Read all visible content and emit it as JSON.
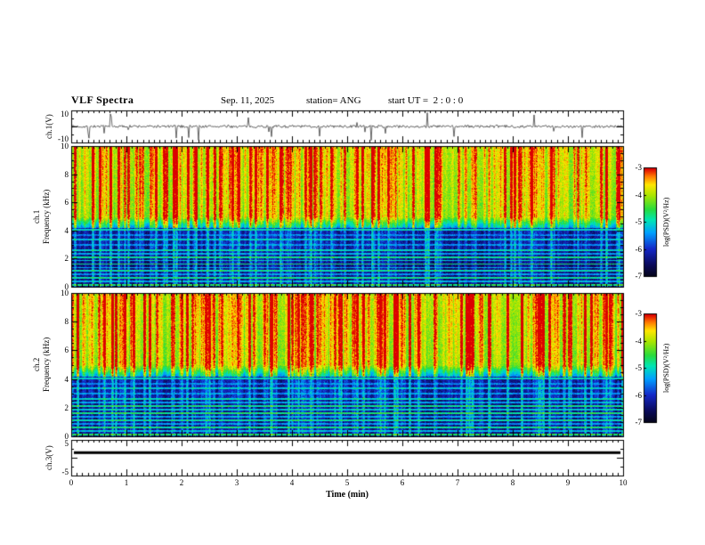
{
  "chart_data": {
    "type": "heatmap",
    "title": "VLF Spectra",
    "header": {
      "date": "Sep. 11, 2025",
      "station": "station= ANG",
      "start_ut": "start UT =  2 : 0 : 0"
    },
    "x_axis": {
      "label": "Time (min)",
      "range": [
        0,
        10
      ],
      "major_ticks": [
        "0",
        "1",
        "2",
        "3",
        "4",
        "5",
        "6",
        "7",
        "8",
        "9",
        "10"
      ]
    },
    "panels": [
      {
        "name": "ch1-voltage",
        "type": "waveform",
        "ylabel": "ch.1(V)",
        "range": [
          -10,
          10
        ],
        "tick_labels": [
          "10",
          "-10"
        ]
      },
      {
        "name": "ch1-spectrogram",
        "type": "spectrogram",
        "ylabel_lines": [
          "ch.1",
          "Frequency (kHz)"
        ],
        "range": [
          0,
          10
        ],
        "tick_labels": [
          "10",
          "8",
          "6",
          "4",
          "2",
          "0"
        ]
      },
      {
        "name": "ch2-spectrogram",
        "type": "spectrogram",
        "ylabel_lines": [
          "ch.2",
          "Frequency (kHz)"
        ],
        "range": [
          0,
          10
        ],
        "tick_labels": [
          "10",
          "8",
          "6",
          "4",
          "2",
          "0"
        ]
      },
      {
        "name": "ch3-voltage",
        "type": "constant",
        "ylabel": "ch.3(V)",
        "range": [
          -5,
          5
        ],
        "tick_labels": [
          "5",
          "-5"
        ],
        "value": 1.5
      }
    ],
    "colorbar": {
      "label": "log(PSD)(V²/Hz)",
      "range": [
        -7,
        -3
      ],
      "tick_labels": [
        "-3",
        "-4",
        "-5",
        "-6",
        "-7"
      ]
    }
  }
}
